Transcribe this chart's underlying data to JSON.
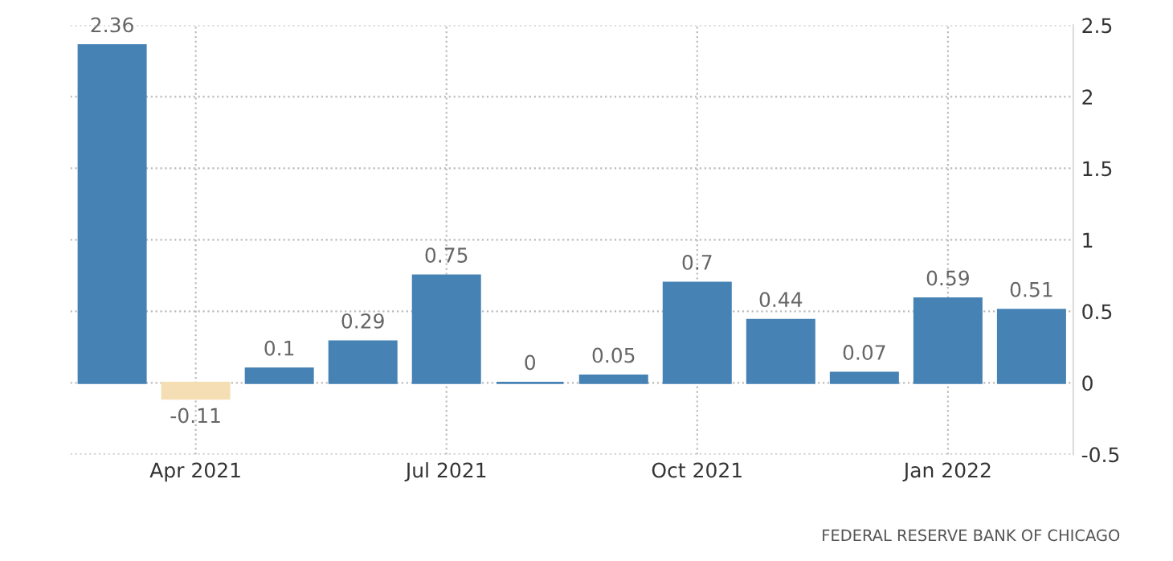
{
  "chart_data": {
    "type": "bar",
    "categories": [
      null,
      "Apr 2021",
      null,
      null,
      "Jul 2021",
      null,
      null,
      "Oct 2021",
      null,
      null,
      "Jan 2022",
      null
    ],
    "values": [
      2.36,
      -0.11,
      0.1,
      0.29,
      0.75,
      0,
      0.05,
      0.7,
      0.44,
      0.07,
      0.59,
      0.51
    ],
    "colors": [
      "#4682b4",
      "#f5deb3",
      "#4682b4",
      "#4682b4",
      "#4682b4",
      "#4682b4",
      "#4682b4",
      "#4682b4",
      "#4682b4",
      "#4682b4",
      "#4682b4",
      "#4682b4"
    ],
    "ylim": [
      -0.5,
      2.5
    ],
    "yticks": [
      -0.5,
      0,
      0.5,
      1,
      1.5,
      2,
      2.5
    ],
    "grid": true,
    "data_labels": true,
    "annotations": [
      "FEDERAL RESERVE BANK OF CHICAGO"
    ]
  }
}
